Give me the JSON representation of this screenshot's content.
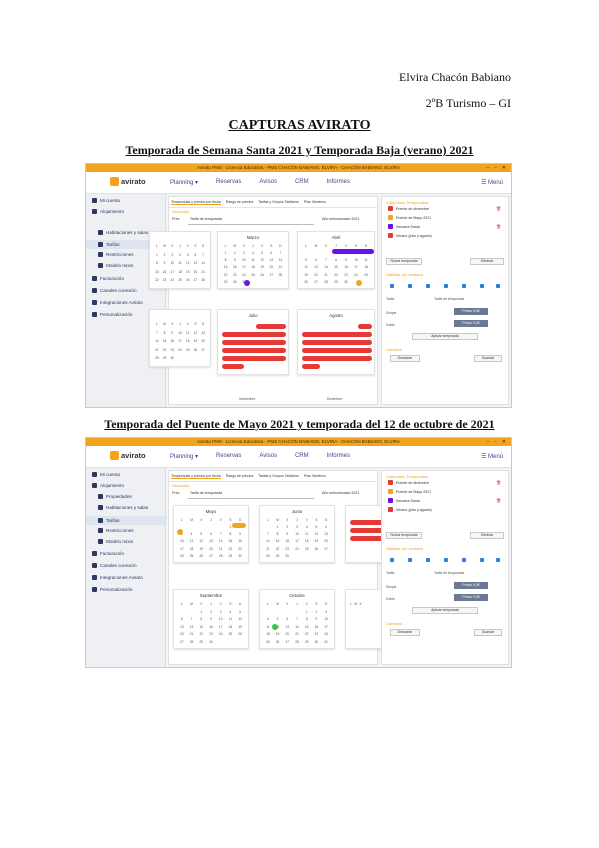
{
  "header": {
    "author": "Elvira Chacón Babiano",
    "course": "2ºB Turismo – GI",
    "title": "CAPTURAS AVIRATO",
    "caption1": "Temporada de Semana Santa 2021 y Temporada Baja (verano) 2021",
    "caption2": "Temporada del Puente de Mayo 2021 y temporada del 12 de octubre de 2021"
  },
  "app": {
    "window_title": "Avirato PMS - Licencia Educativa - PMS CHACÓN BABIANO, ELVIRA - CHACÓN BABIANO, ELVIRA",
    "logo": "avirato",
    "nav": [
      "Planning ▾",
      "Reservas",
      "Avisos",
      "CRM",
      "Informes"
    ],
    "menu": "☰ Menú",
    "sidebar": [
      "Mi cuenta",
      "Alojamiento",
      "Propiedades",
      "Habitaciones y salas",
      "Tarifas",
      "Restricciones",
      "Modelo mixto",
      "Facturación",
      "Canales conexión",
      "Integraciones Avirato",
      "Personalización"
    ],
    "tabs": [
      "Temporadas y precios por fecha",
      "Rango de precios",
      "Tarifas y Grupos Tarifarios",
      "Plan Genérico"
    ],
    "select_label": "Selección",
    "select_row_label": "Pres",
    "select_value": "Tarifa de temporada",
    "year_label": "Año seleccionado",
    "year_value": "2021",
    "seasons_header": "Calendario Temporadas",
    "seasons": [
      "Puente de diciembre",
      "Puente de Mayo 2021",
      "Semana Santa",
      "Verano (julio y agosto)"
    ],
    "add_label": "Nueva temporada",
    "del_label": "Eliminar",
    "weekdays_header": "Habilitar por semana",
    "weekday_letters": [
      "L",
      "M",
      "X",
      "J",
      "V",
      "S",
      "D"
    ],
    "tarifa_label": "Tarifa",
    "tarifa_value": "Tarifa de temporada",
    "single_label": "Simple",
    "double_label": "Doble",
    "price_btn": "Precio 0,0€",
    "apply_btn": "Aplicar temporada",
    "changes_header": "Cambios",
    "discard_btn": "Descartar",
    "save_btn": "Guardar"
  },
  "shot1": {
    "months_top": [
      "Marzo",
      "Abril"
    ],
    "months_bottom": [
      "Julio",
      "Agosto"
    ],
    "months_footer": [
      "Noviembre",
      "Diciembre"
    ]
  },
  "shot2": {
    "months_top": [
      "Mayo",
      "Junio"
    ],
    "months_bottom": [
      "Septiembre",
      "Octubre"
    ]
  },
  "colors": {
    "brand": "#f2a41f",
    "semana_santa": "#6a11e8",
    "puente_mayo": "#f2a41f",
    "verano": "#e53935",
    "octubre": "#2ecc40"
  }
}
